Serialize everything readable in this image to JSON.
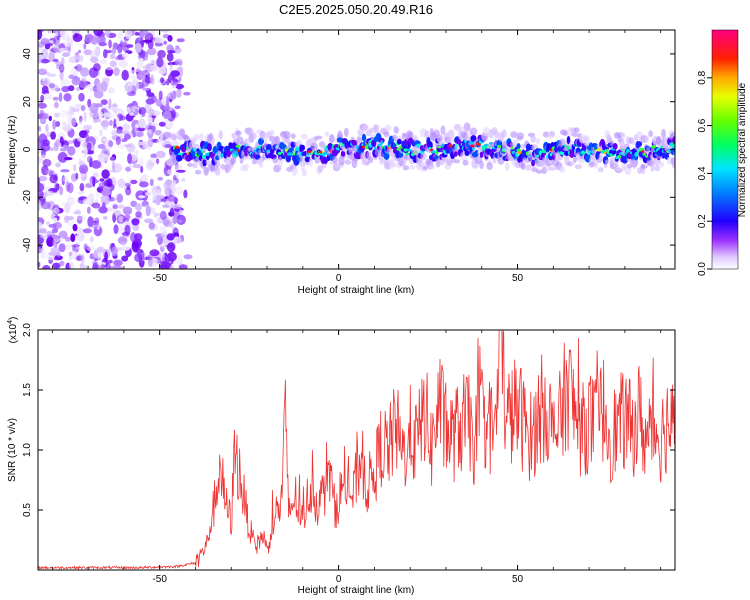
{
  "title": "C2E5.2025.050.20.49.R16",
  "chart_data": [
    {
      "type": "heatmap",
      "xlabel": "Height of straight line (km)",
      "ylabel": "Frequency (Hz)",
      "xlim": [
        -84,
        94
      ],
      "ylim": [
        -50,
        50
      ],
      "x_ticks": [
        -50,
        0,
        50
      ],
      "y_ticks": [
        -40,
        -20,
        0,
        20,
        40
      ],
      "colorbar": {
        "label": "Normalized spectral amplitude",
        "range": [
          0,
          1
        ],
        "ticks": [
          0.0,
          0.2,
          0.4,
          0.6,
          0.8
        ],
        "colors": [
          "#ffffff",
          "#cc99ff",
          "#8800ff",
          "#0000ff",
          "#00aaff",
          "#00ffdd",
          "#00ff00",
          "#ccff00",
          "#ffaa00",
          "#ff0000",
          "#ff00aa"
        ]
      },
      "noise_region": {
        "x_from": -84,
        "x_to": -44
      },
      "signal_band": {
        "x_from": -46,
        "x_to": 94,
        "center_hz": 0,
        "half_width_hz": 5
      }
    },
    {
      "type": "line",
      "xlabel": "Height of straight line (km)",
      "ylabel": "SNR (10 * v/v)",
      "scale_note": "(x10",
      "scale_exp": "4",
      "xlim": [
        -84,
        94
      ],
      "ylim": [
        0,
        2.0
      ],
      "x_ticks": [
        -50,
        0,
        50
      ],
      "y_ticks": [
        0.5,
        1.0,
        1.5,
        2.0
      ],
      "color": "#ee3333",
      "series": [
        {
          "x": [
            -84,
            -70,
            -55,
            -45,
            -40,
            -37,
            -35,
            -33,
            -32,
            -30,
            -29,
            -27,
            -25,
            -23,
            -21,
            -20,
            -18,
            -16,
            -15,
            -14,
            -12,
            -10,
            -8,
            -6,
            -4,
            -3,
            -1,
            0,
            2,
            4,
            6,
            8,
            10,
            12,
            14,
            16,
            18,
            20,
            22,
            24,
            26,
            28,
            30,
            32,
            34,
            36,
            38,
            40,
            42,
            44,
            45,
            47,
            50,
            52,
            54,
            56,
            58,
            60,
            62,
            64,
            66,
            68,
            70,
            72,
            74,
            76,
            78,
            80,
            82,
            84,
            86,
            88,
            90,
            92,
            94
          ],
          "y": [
            0.02,
            0.02,
            0.02,
            0.03,
            0.06,
            0.2,
            0.5,
            0.9,
            0.6,
            0.4,
            1.0,
            0.7,
            0.35,
            0.2,
            0.3,
            0.15,
            0.45,
            0.55,
            1.3,
            0.5,
            0.6,
            0.4,
            0.7,
            0.55,
            0.65,
            0.9,
            0.5,
            0.6,
            0.75,
            0.6,
            0.95,
            0.7,
            0.8,
            1.05,
            1.0,
            1.2,
            0.95,
            1.15,
            1.05,
            1.35,
            1.0,
            1.4,
            1.15,
            1.1,
            1.2,
            1.25,
            1.05,
            1.3,
            1.2,
            1.15,
            2.0,
            1.25,
            1.35,
            1.2,
            1.1,
            1.3,
            1.4,
            1.1,
            1.25,
            1.55,
            1.3,
            1.15,
            1.25,
            1.2,
            1.35,
            1.1,
            1.2,
            1.25,
            1.15,
            1.3,
            1.05,
            1.2,
            1.1,
            1.25,
            1.15
          ]
        }
      ]
    }
  ]
}
